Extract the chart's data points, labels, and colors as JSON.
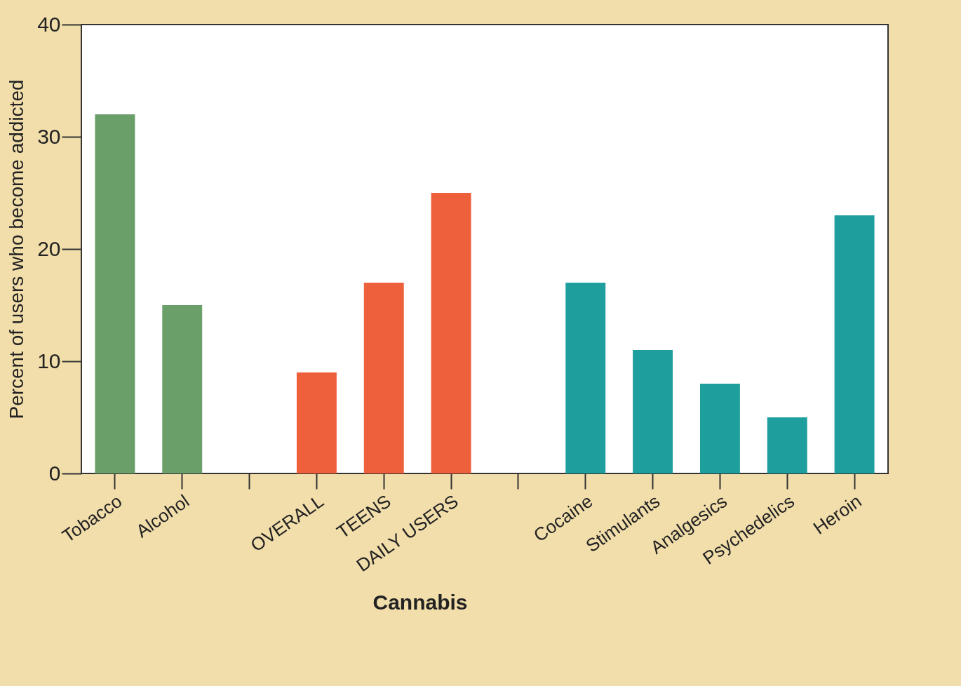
{
  "chart_data": {
    "type": "bar",
    "ylabel": "Percent of users who become addicted",
    "categories": [
      "Tobacco",
      "Alcohol",
      null,
      "OVERALL",
      "TEENS",
      "DAILY USERS",
      null,
      "Cocaine",
      "Stimulants",
      "Analgesics",
      "Psychedelics",
      "Heroin"
    ],
    "values": [
      32,
      15,
      null,
      9,
      17,
      25,
      null,
      17,
      11,
      8,
      5,
      23
    ],
    "colors": [
      "#6a9f69",
      "#6a9f69",
      null,
      "#ee5f3c",
      "#ee5f3c",
      "#ee5f3c",
      null,
      "#1f9e9e",
      "#1f9e9e",
      "#1f9e9e",
      "#1f9e9e",
      "#1f9e9e"
    ],
    "ylim": [
      0,
      40
    ],
    "yticks": [
      0,
      10,
      20,
      30,
      40
    ],
    "grid": false,
    "annotations": [
      "Cannabis"
    ]
  }
}
